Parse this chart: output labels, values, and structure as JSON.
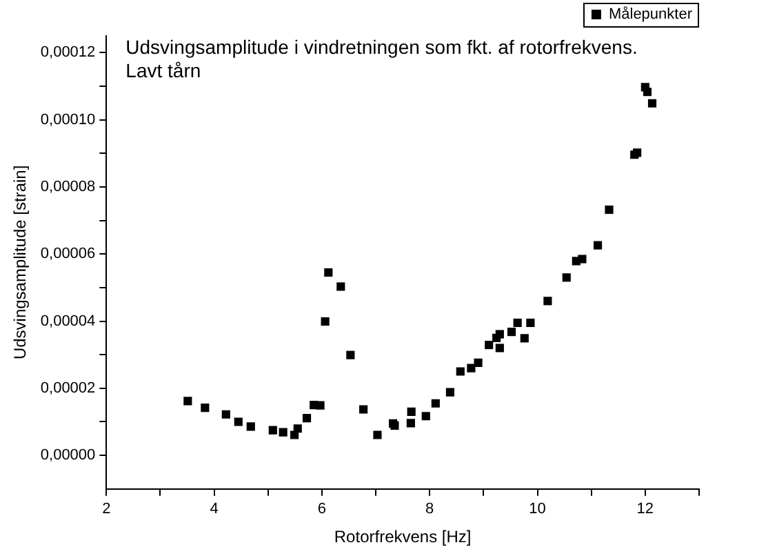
{
  "chart_data": {
    "type": "scatter",
    "title": "Udsvingsamplitude i vindretningen som fkt. af rotorfrekvens.\nLavt tårn",
    "xlabel": "Rotorfrekvens [Hz]",
    "ylabel": "Udsvingsamplitude [strain]",
    "legend": "top right",
    "grid": false,
    "marker": "square",
    "xlim": [
      2,
      13
    ],
    "xticks": [
      2,
      {
        "value": 3,
        "label": null
      },
      4,
      {
        "value": 5,
        "label": null
      },
      6,
      {
        "value": 7,
        "label": null
      },
      8,
      {
        "value": 9,
        "label": null
      },
      10,
      {
        "value": 11,
        "label": null
      },
      12,
      {
        "value": 13,
        "label": null
      }
    ],
    "ylim": [
      -1e-05,
      0.000125
    ],
    "yticks": [
      {
        "value": 0,
        "label": "0,00000"
      },
      {
        "value": 1e-05,
        "label": null
      },
      {
        "value": 2e-05,
        "label": "0,00002"
      },
      {
        "value": 3e-05,
        "label": null
      },
      {
        "value": 4e-05,
        "label": "0,00004"
      },
      {
        "value": 5e-05,
        "label": null
      },
      {
        "value": 6e-05,
        "label": "0,00006"
      },
      {
        "value": 7e-05,
        "label": null
      },
      {
        "value": 8e-05,
        "label": "0,00008"
      },
      {
        "value": 9e-05,
        "label": null
      },
      {
        "value": 0.0001,
        "label": "0,00010"
      },
      {
        "value": 0.00011,
        "label": null
      },
      {
        "value": 0.00012,
        "label": "0,00012"
      }
    ],
    "series": [
      {
        "name": "Målepunkter",
        "color": "#000000",
        "x": [
          3.51,
          3.83,
          4.22,
          4.45,
          4.68,
          5.09,
          5.28,
          5.49,
          5.55,
          5.72,
          5.85,
          5.97,
          6.06,
          6.12,
          6.35,
          6.53,
          6.77,
          7.03,
          7.32,
          7.35,
          7.65,
          7.66,
          7.93,
          8.11,
          8.38,
          8.57,
          8.77,
          8.9,
          9.1,
          9.24,
          9.3,
          9.3,
          9.52,
          9.63,
          9.76,
          9.87,
          10.19,
          10.54,
          10.72,
          10.83,
          11.12,
          11.33,
          11.8,
          11.85,
          12.0,
          12.04,
          12.13
        ],
        "values": [
          1.62e-05,
          1.42e-05,
          1.22e-05,
          1e-05,
          8.6e-06,
          7.5e-06,
          6.9e-06,
          6.1e-06,
          8e-06,
          1.11e-05,
          1.5e-05,
          1.49e-05,
          3.99e-05,
          5.45e-05,
          5.03e-05,
          2.99e-05,
          1.37e-05,
          6.1e-06,
          9.5e-06,
          8.9e-06,
          9.6e-06,
          1.3e-05,
          1.17e-05,
          1.55e-05,
          1.88e-05,
          2.5e-05,
          2.6e-05,
          2.76e-05,
          3.29e-05,
          3.5e-05,
          3.61e-05,
          3.2e-05,
          3.68e-05,
          3.95e-05,
          3.49e-05,
          3.95e-05,
          4.6e-05,
          5.3e-05,
          5.79e-05,
          5.85e-05,
          6.26e-05,
          7.32e-05,
          8.96e-05,
          9.02e-05,
          0.0001097,
          0.0001083,
          0.0001049
        ]
      }
    ]
  }
}
